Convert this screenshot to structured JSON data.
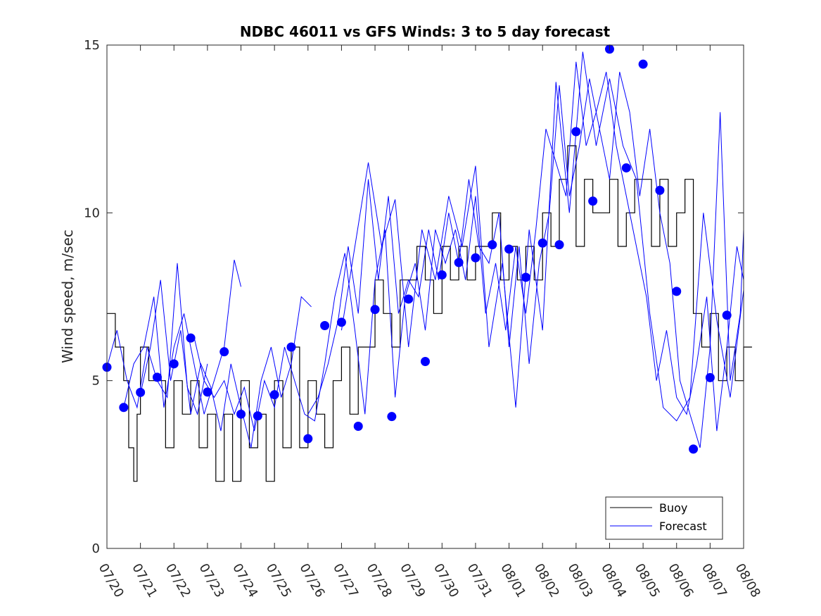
{
  "chart_data": {
    "type": "line",
    "title": "NDBC 46011 vs GFS Winds: 3 to 5 day forecast",
    "xlabel": "",
    "ylabel": "Wind speed, m/sec",
    "ylim": [
      0,
      15
    ],
    "yticks": [
      "0",
      "5",
      "10",
      "15"
    ],
    "xticks": [
      "07/20",
      "07/21",
      "07/22",
      "07/23",
      "07/24",
      "07/25",
      "07/26",
      "07/27",
      "07/28",
      "07/29",
      "07/30",
      "07/31",
      "08/01",
      "08/02",
      "08/03",
      "08/04",
      "08/05",
      "08/06",
      "08/07",
      "08/08"
    ],
    "x_unit": "days since 07/20",
    "grid": false,
    "legend_position": "bottom-right",
    "colors": {
      "buoy": "#000000",
      "forecast": "#0000ff",
      "markers": "#0000ff"
    },
    "series": [
      {
        "name": "Buoy",
        "kind": "step",
        "x": [
          0.0,
          0.25,
          0.5,
          0.65,
          0.8,
          0.9,
          1.0,
          1.25,
          1.5,
          1.75,
          2.0,
          2.25,
          2.5,
          2.75,
          3.0,
          3.25,
          3.5,
          3.75,
          4.0,
          4.25,
          4.5,
          4.75,
          5.0,
          5.25,
          5.5,
          5.75,
          6.0,
          6.25,
          6.5,
          6.75,
          7.0,
          7.25,
          7.5,
          7.75,
          8.0,
          8.25,
          8.5,
          8.75,
          9.0,
          9.25,
          9.5,
          9.75,
          10.0,
          10.25,
          10.5,
          10.75,
          11.0,
          11.25,
          11.5,
          11.75,
          12.0,
          12.25,
          12.5,
          12.75,
          13.0,
          13.25,
          13.5,
          13.75,
          14.0,
          14.25,
          14.5,
          14.75,
          15.0,
          15.25,
          15.5,
          15.75,
          16.0,
          16.25,
          16.5,
          16.75,
          17.0,
          17.25,
          17.5,
          17.75,
          18.0,
          18.25,
          18.5,
          18.75,
          19.0
        ],
        "values": [
          7,
          6,
          5,
          3,
          2,
          4,
          6,
          5,
          5,
          3,
          5,
          4,
          5,
          3,
          4,
          2,
          4,
          2,
          5,
          3,
          4,
          2,
          5,
          3,
          6,
          3,
          5,
          4,
          3,
          5,
          6,
          4,
          6,
          6,
          8,
          7,
          6,
          8,
          8,
          9,
          8,
          7,
          9,
          8,
          9,
          8,
          9,
          9,
          10,
          8,
          9,
          8,
          9,
          8,
          10,
          9,
          11,
          12,
          9,
          11,
          10,
          10,
          11,
          9,
          10,
          11,
          11,
          9,
          11,
          9,
          10,
          11,
          7,
          6,
          7,
          5,
          6,
          5,
          6
        ]
      },
      {
        "name": "Forecast",
        "kind": "line",
        "runs": [
          {
            "x": [
              0.0,
              0.3,
              0.6,
              0.9,
              1.2,
              1.5,
              1.8,
              2.1,
              2.4,
              2.7,
              3.0
            ],
            "values": [
              5.4,
              6.5,
              5.0,
              4.2,
              6.0,
              5.0,
              4.5,
              8.5,
              4.8,
              4.0,
              5.5
            ]
          },
          {
            "x": [
              0.5,
              0.8,
              1.1,
              1.4,
              1.7,
              2.0,
              2.3,
              2.6,
              2.9,
              3.2,
              3.5,
              3.8,
              4.0
            ],
            "values": [
              4.2,
              5.5,
              6.0,
              7.5,
              4.2,
              6.0,
              7.0,
              5.5,
              4.0,
              5.0,
              6.0,
              8.6,
              7.8
            ]
          },
          {
            "x": [
              1.0,
              1.3,
              1.6,
              1.9,
              2.2,
              2.5,
              2.8,
              3.1,
              3.4,
              3.7,
              4.0,
              4.3,
              4.6,
              4.9,
              5.2,
              5.5,
              5.8,
              6.1
            ],
            "values": [
              4.6,
              6.0,
              8.0,
              5.0,
              6.5,
              4.0,
              5.5,
              4.8,
              3.5,
              5.5,
              4.2,
              3.0,
              5.0,
              6.0,
              4.5,
              5.5,
              7.5,
              7.2
            ]
          },
          {
            "x": [
              2.6,
              2.9,
              3.2,
              3.5,
              3.8,
              4.1,
              4.4,
              4.7,
              5.0,
              5.3,
              5.6,
              5.9,
              6.2,
              6.5,
              6.8,
              7.1,
              7.4,
              7.7,
              8.0,
              8.3,
              8.6,
              8.9,
              9.2,
              9.5,
              9.8,
              10.1,
              10.4,
              10.7,
              11.0,
              11.3,
              11.6,
              11.9,
              12.2,
              12.5,
              12.8,
              13.1,
              13.4,
              13.7,
              14.0,
              14.3,
              14.6,
              14.9,
              15.2,
              15.5,
              15.8,
              16.1,
              16.4,
              16.7,
              17.0,
              17.3,
              17.6,
              17.9,
              18.2,
              18.5,
              18.8,
              19.0
            ],
            "values": [
              6.3,
              5.0,
              4.5,
              5.0,
              4.0,
              4.8,
              3.5,
              5.0,
              4.2,
              6.0,
              5.0,
              4.0,
              3.8,
              5.5,
              7.5,
              8.8,
              6.5,
              4.0,
              8.0,
              9.5,
              4.5,
              7.5,
              8.5,
              6.5,
              9.5,
              8.5,
              9.5,
              8.0,
              10.5,
              7.0,
              8.5,
              6.5,
              9.0,
              7.0,
              9.5,
              12.5,
              11.5,
              10.5,
              14.5,
              12.0,
              13.0,
              14.2,
              12.0,
              10.5,
              9.0,
              7.5,
              5.0,
              6.5,
              4.5,
              4.0,
              5.5,
              7.5,
              3.5,
              6.0,
              9.0,
              8.0
            ]
          },
          {
            "x": [
              6.0,
              6.3,
              6.6,
              6.9,
              7.2,
              7.5,
              7.8,
              8.1,
              8.4,
              8.7,
              9.0,
              9.3,
              9.6,
              9.9,
              10.2,
              10.5,
              10.8,
              11.1,
              11.4,
              11.7,
              12.0,
              12.3,
              12.6,
              12.9,
              13.2,
              13.5,
              13.8,
              14.1,
              14.4,
              14.7,
              15.0,
              15.3,
              15.6,
              15.9,
              16.2,
              16.5,
              16.8,
              17.1,
              17.4,
              17.7,
              18.0,
              18.3,
              18.6,
              18.9,
              19.0
            ],
            "values": [
              4.0,
              4.5,
              5.5,
              6.8,
              9.0,
              7.0,
              11.0,
              8.0,
              10.5,
              7.0,
              8.0,
              7.5,
              9.5,
              8.0,
              10.0,
              8.5,
              11.0,
              9.0,
              8.5,
              10.0,
              6.0,
              9.0,
              5.5,
              8.5,
              10.0,
              13.8,
              10.5,
              12.0,
              14.0,
              12.5,
              11.0,
              14.2,
              13.0,
              10.5,
              12.5,
              10.0,
              8.5,
              5.0,
              4.0,
              3.0,
              6.0,
              13.0,
              5.0,
              7.0,
              9.5
            ]
          },
          {
            "x": [
              7.0,
              7.4,
              7.8,
              8.2,
              8.6,
              9.0,
              9.4,
              9.8,
              10.2,
              10.6,
              11.0,
              11.4,
              11.8,
              12.2,
              12.6,
              13.0,
              13.4,
              13.8,
              14.2,
              14.6,
              15.0,
              15.4,
              15.8,
              16.2,
              16.6,
              17.0,
              17.4,
              17.8,
              18.2,
              18.6,
              19.0
            ],
            "values": [
              6.5,
              9.0,
              11.5,
              9.0,
              10.4,
              6.0,
              9.5,
              8.0,
              10.5,
              9.0,
              11.4,
              6.0,
              8.5,
              4.2,
              9.5,
              6.5,
              13.9,
              10.0,
              14.8,
              12.0,
              14.0,
              12.0,
              11.0,
              7.0,
              4.2,
              3.8,
              4.5,
              10.0,
              6.8,
              4.5,
              7.7
            ]
          }
        ],
        "markers": {
          "x": [
            0.0,
            0.5,
            1.0,
            1.5,
            2.0,
            2.5,
            3.0,
            3.5,
            4.0,
            4.5,
            5.0,
            5.5,
            6.0,
            6.5,
            7.0,
            7.5,
            8.0,
            8.5,
            9.0,
            9.5,
            10.0,
            10.5,
            11.0,
            11.5,
            12.0,
            12.5,
            13.0,
            13.5,
            14.0,
            14.5,
            15.0,
            15.5,
            16.0,
            16.5,
            17.0,
            17.5,
            18.0,
            18.5
          ],
          "values": [
            5.4,
            4.2,
            4.65,
            5.1,
            5.5,
            6.27,
            4.66,
            5.86,
            4.0,
            3.95,
            4.58,
            6.0,
            3.27,
            6.64,
            6.74,
            3.64,
            7.12,
            3.93,
            7.43,
            5.57,
            8.15,
            8.52,
            8.66,
            9.05,
            8.92,
            8.08,
            9.1,
            9.05,
            12.42,
            10.35,
            14.88,
            11.34,
            14.43,
            10.67,
            7.66,
            2.96,
            5.09,
            6.95
          ]
        }
      }
    ]
  }
}
